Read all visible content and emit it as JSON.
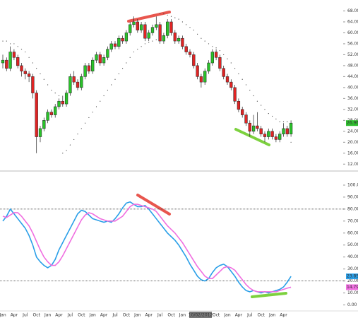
{
  "chart_data": [
    {
      "type": "candlestick",
      "price_label": "26.96",
      "price_label_color": "#2fbf2f",
      "up_color": "#29c329",
      "down_color": "#e02424",
      "sar_color": "#444444",
      "ylim": [
        10,
        72
      ],
      "yticks": [
        {
          "value": 12,
          "label": "12.00"
        },
        {
          "value": 16,
          "label": "16.00"
        },
        {
          "value": 20,
          "label": "20.00"
        },
        {
          "value": 24,
          "label": "24.00"
        },
        {
          "value": 28,
          "label": "28.00"
        },
        {
          "value": 32,
          "label": "32.00"
        },
        {
          "value": 36,
          "label": "36.00"
        },
        {
          "value": 40,
          "label": "40.00"
        },
        {
          "value": 44,
          "label": "44.00"
        },
        {
          "value": 48,
          "label": "48.00"
        },
        {
          "value": 52,
          "label": "52.00"
        },
        {
          "value": 56,
          "label": "56.00"
        },
        {
          "value": 60,
          "label": "60.00"
        },
        {
          "value": 64,
          "label": "64.00"
        },
        {
          "value": 68,
          "label": "68.00"
        }
      ],
      "ohlc": [
        [
          49,
          52,
          47,
          50
        ],
        [
          50,
          51,
          46,
          47
        ],
        [
          47,
          55,
          46,
          53
        ],
        [
          53,
          54,
          50,
          51
        ],
        [
          51,
          52,
          47,
          48
        ],
        [
          48,
          49,
          44,
          46
        ],
        [
          46,
          47,
          43,
          45
        ],
        [
          45,
          46,
          42,
          44
        ],
        [
          44,
          45,
          36,
          38
        ],
        [
          38,
          39,
          16,
          22
        ],
        [
          22,
          26,
          20,
          25
        ],
        [
          25,
          29,
          24,
          28
        ],
        [
          28,
          32,
          27,
          31
        ],
        [
          31,
          32,
          29,
          30
        ],
        [
          30,
          34,
          29,
          33
        ],
        [
          33,
          36,
          32,
          35
        ],
        [
          35,
          37,
          33,
          34
        ],
        [
          34,
          39,
          33,
          38
        ],
        [
          38,
          45,
          37,
          44
        ],
        [
          44,
          46,
          41,
          42
        ],
        [
          42,
          43,
          39,
          40
        ],
        [
          40,
          45,
          39,
          44
        ],
        [
          44,
          49,
          43,
          48
        ],
        [
          48,
          49,
          45,
          46
        ],
        [
          46,
          51,
          45,
          50
        ],
        [
          50,
          53,
          49,
          52
        ],
        [
          52,
          53,
          48,
          49
        ],
        [
          49,
          52,
          48,
          51
        ],
        [
          51,
          55,
          50,
          54
        ],
        [
          54,
          57,
          53,
          56
        ],
        [
          56,
          57,
          54,
          55
        ],
        [
          55,
          59,
          54,
          58
        ],
        [
          58,
          59,
          56,
          57
        ],
        [
          57,
          61,
          56,
          60
        ],
        [
          60,
          64,
          59,
          63
        ],
        [
          63,
          66,
          62,
          64
        ],
        [
          64,
          65,
          60,
          61
        ],
        [
          61,
          64,
          60,
          63
        ],
        [
          63,
          64,
          57,
          58
        ],
        [
          58,
          61,
          57,
          60
        ],
        [
          60,
          63,
          59,
          62
        ],
        [
          62,
          66,
          61,
          63
        ],
        [
          63,
          64,
          56,
          57
        ],
        [
          57,
          60,
          56,
          59
        ],
        [
          59,
          65,
          58,
          64
        ],
        [
          64,
          65,
          59,
          60
        ],
        [
          60,
          61,
          56,
          57
        ],
        [
          57,
          59,
          56,
          58
        ],
        [
          58,
          59,
          54,
          55
        ],
        [
          55,
          56,
          52,
          53
        ],
        [
          53,
          54,
          51,
          52
        ],
        [
          52,
          53,
          47,
          48
        ],
        [
          48,
          49,
          43,
          44
        ],
        [
          44,
          45,
          40,
          42
        ],
        [
          42,
          47,
          41,
          46
        ],
        [
          46,
          50,
          45,
          49
        ],
        [
          49,
          54,
          48,
          53
        ],
        [
          53,
          54,
          50,
          51
        ],
        [
          51,
          52,
          46,
          47
        ],
        [
          47,
          48,
          43,
          44
        ],
        [
          44,
          45,
          41,
          42
        ],
        [
          42,
          43,
          39,
          40
        ],
        [
          40,
          41,
          34,
          35
        ],
        [
          35,
          36,
          31,
          32
        ],
        [
          32,
          33,
          29,
          30
        ],
        [
          30,
          31,
          26,
          27
        ],
        [
          27,
          28,
          22,
          24
        ],
        [
          24,
          30,
          23,
          26
        ],
        [
          26,
          31,
          24,
          25
        ],
        [
          25,
          26,
          22,
          23
        ],
        [
          23,
          24,
          20,
          22
        ],
        [
          22,
          25,
          21,
          24
        ],
        [
          24,
          25,
          21,
          22
        ],
        [
          22,
          23,
          20,
          21
        ],
        [
          21,
          24,
          20,
          23
        ],
        [
          23,
          27,
          22,
          25
        ],
        [
          25,
          26,
          22,
          23
        ],
        [
          23,
          28,
          22,
          27
        ]
      ],
      "sar": [
        57,
        57,
        56,
        56,
        55,
        54,
        53,
        51,
        49,
        47,
        45,
        43,
        41,
        39,
        38,
        37,
        16,
        17,
        19,
        21,
        23,
        25,
        27,
        29,
        31,
        33,
        35,
        37,
        39,
        41,
        43,
        45,
        47,
        49,
        51,
        53,
        54,
        55,
        56,
        56.5,
        57,
        57.5,
        67,
        67,
        66.5,
        66,
        65.5,
        65,
        64,
        63,
        62,
        61,
        59.5,
        58,
        57,
        56,
        55,
        54.5,
        53.5,
        52,
        50.5,
        49,
        47,
        45,
        43,
        41,
        39,
        37,
        35,
        33.5,
        32,
        30.5,
        29.5,
        28.5,
        27.5,
        27.5,
        27.5,
        20
      ]
    },
    {
      "type": "line",
      "crosshair_label": "10/02/2012",
      "ylim": [
        -5,
        110
      ],
      "yticks": [
        {
          "value": 0,
          "label": "0.00"
        },
        {
          "value": 10,
          "label": "10.00"
        },
        {
          "value": 20,
          "label": "20.00"
        },
        {
          "value": 30,
          "label": "30.00"
        },
        {
          "value": 40,
          "label": "40.00"
        },
        {
          "value": 50,
          "label": "50.00"
        },
        {
          "value": 60,
          "label": "60.00"
        },
        {
          "value": 70,
          "label": "70.00"
        },
        {
          "value": 80,
          "label": "80.00"
        },
        {
          "value": 90,
          "label": "90.00"
        },
        {
          "value": 100,
          "label": "100.00"
        }
      ],
      "reference_lines": [
        80,
        20
      ],
      "categories": [
        "Jan",
        null,
        null,
        "Apr",
        null,
        null,
        "Jul",
        null,
        null,
        "Oct",
        null,
        null,
        "Jan",
        null,
        null,
        "Apr",
        null,
        null,
        "Jul",
        null,
        null,
        "Oct",
        null,
        null,
        "Jan",
        null,
        null,
        "Apr",
        null,
        null,
        "Jul",
        null,
        null,
        "Oct",
        null,
        null,
        "Jan",
        null,
        null,
        "Apr",
        null,
        null,
        "Jul",
        null,
        null,
        "Oct",
        null,
        null,
        "Jan",
        null,
        null,
        "Apr",
        null,
        null,
        "Jul",
        null,
        null,
        "Oct",
        null,
        null,
        "Jan",
        null,
        null,
        "Apr",
        null,
        null,
        "Jul",
        null,
        null,
        "Oct",
        null,
        null,
        "Jan",
        null,
        null,
        "Apr",
        null,
        null
      ],
      "series": [
        {
          "color": "#2a9fe8",
          "end_label": "23.85",
          "values": [
            70,
            74,
            80,
            76,
            72,
            68,
            64,
            58,
            50,
            40,
            36,
            33,
            31,
            33,
            38,
            46,
            52,
            58,
            64,
            70,
            76,
            79,
            78,
            75,
            72,
            71,
            70,
            69,
            70,
            69,
            72,
            76,
            81,
            85,
            86,
            84,
            82,
            82,
            83,
            80,
            76,
            72,
            68,
            64,
            60,
            57,
            54,
            50,
            45,
            40,
            34,
            29,
            24,
            21,
            20,
            22,
            27,
            31,
            33,
            34,
            32,
            28,
            24,
            19,
            15,
            12,
            11,
            12,
            11,
            10,
            11,
            10,
            11,
            12,
            13,
            15,
            19,
            23.85
          ]
        },
        {
          "color": "#f06ee0",
          "end_label": "14.79",
          "values": [
            74,
            73,
            75,
            77,
            77,
            74,
            70,
            66,
            60,
            53,
            46,
            40,
            36,
            33,
            33,
            36,
            41,
            47,
            53,
            59,
            65,
            71,
            75,
            77,
            76,
            74,
            72,
            71,
            70,
            70,
            70,
            72,
            74,
            78,
            82,
            84,
            84,
            83,
            82,
            81,
            80,
            78,
            74,
            70,
            66,
            63,
            60,
            56,
            52,
            47,
            42,
            37,
            32,
            28,
            24,
            22,
            22,
            25,
            28,
            31,
            32,
            31,
            29,
            25,
            21,
            17,
            14,
            12,
            11,
            11,
            11,
            11,
            11,
            11,
            12,
            13,
            14,
            14.79
          ]
        }
      ]
    }
  ]
}
